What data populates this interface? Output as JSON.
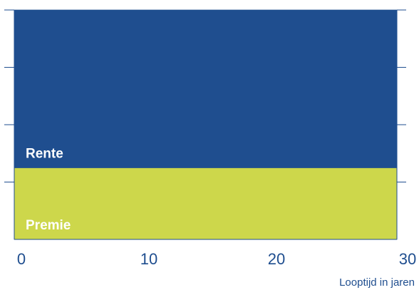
{
  "chart_data": {
    "type": "area",
    "xlabel": "Looptijd in jaren",
    "x_ticks": [
      0,
      10,
      20,
      30
    ],
    "xlim": [
      0,
      30
    ],
    "ylim": [
      0,
      4
    ],
    "y_axis_labels": false,
    "stacked": true,
    "series": [
      {
        "name": "Premie",
        "x": [
          0,
          30
        ],
        "values": [
          1.25,
          1.25
        ],
        "color": "#cdd74b"
      },
      {
        "name": "Rente",
        "x": [
          0,
          30
        ],
        "values": [
          2.75,
          2.75
        ],
        "color": "#1f4e8f"
      }
    ],
    "axis_color": "#1f4e8f",
    "tick_color": "#1f4e8f"
  }
}
